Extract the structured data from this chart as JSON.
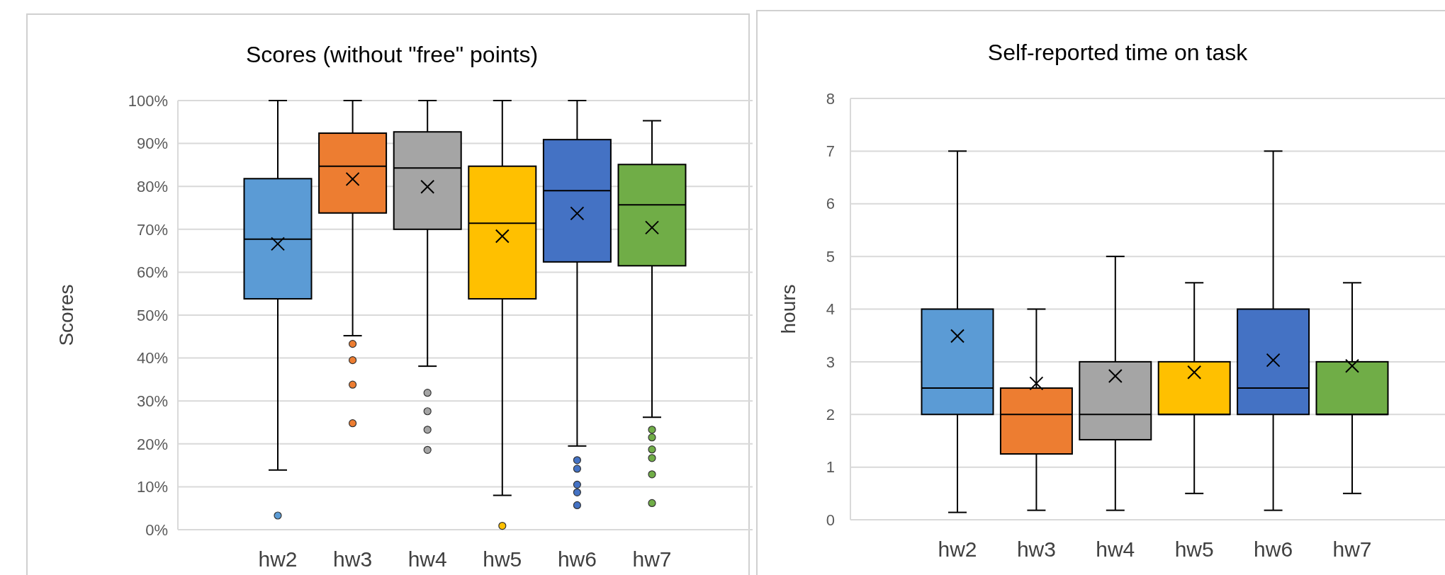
{
  "chart_data": [
    {
      "type": "box",
      "title": "Scores (without \"free\" points)",
      "ylabel": "Scores",
      "categories": [
        "hw2",
        "hw3",
        "hw4",
        "hw5",
        "hw6",
        "hw7"
      ],
      "colors": [
        "#5b9bd5",
        "#ed7d31",
        "#a5a5a5",
        "#ffc000",
        "#4472c4",
        "#70ad47"
      ],
      "boxes": [
        {
          "low": 13.9,
          "q1": 53.8,
          "median": 67.7,
          "q3": 81.8,
          "high": 100,
          "mean": 66.6,
          "outliers": [
            3.3
          ]
        },
        {
          "low": 45.2,
          "q1": 73.8,
          "median": 84.7,
          "q3": 92.4,
          "high": 100,
          "mean": 81.7,
          "outliers": [
            43.3,
            39.5,
            33.8,
            24.8
          ]
        },
        {
          "low": 38.1,
          "q1": 70.0,
          "median": 84.3,
          "q3": 92.7,
          "high": 100,
          "mean": 79.9,
          "outliers": [
            31.9,
            27.6,
            23.3,
            18.6
          ]
        },
        {
          "low": 8.0,
          "q1": 53.8,
          "median": 71.4,
          "q3": 84.7,
          "high": 100,
          "mean": 68.4,
          "outliers": [
            0.9
          ]
        },
        {
          "low": 19.5,
          "q1": 62.4,
          "median": 79.0,
          "q3": 90.9,
          "high": 100,
          "mean": 73.7,
          "outliers": [
            16.2,
            14.2,
            10.5,
            8.7,
            5.7
          ]
        },
        {
          "low": 26.2,
          "q1": 61.5,
          "median": 75.7,
          "q3": 85.1,
          "high": 95.3,
          "mean": 70.4,
          "outliers": [
            23.3,
            21.5,
            18.7,
            16.7,
            12.9,
            6.2
          ]
        }
      ],
      "ylim": [
        0,
        100
      ],
      "yticks": [
        {
          "value": 0,
          "label": "0%"
        },
        {
          "value": 10,
          "label": "10%"
        },
        {
          "value": 20,
          "label": "20%"
        },
        {
          "value": 30,
          "label": "30%"
        },
        {
          "value": 40,
          "label": "40%"
        },
        {
          "value": 50,
          "label": "50%"
        },
        {
          "value": 60,
          "label": "60%"
        },
        {
          "value": 70,
          "label": "70%"
        },
        {
          "value": 80,
          "label": "80%"
        },
        {
          "value": 90,
          "label": "90%"
        },
        {
          "value": 100,
          "label": "100%"
        }
      ],
      "grid": "y"
    },
    {
      "type": "box",
      "title": "Self-reported time on task",
      "ylabel": "hours",
      "categories": [
        "hw2",
        "hw3",
        "hw4",
        "hw5",
        "hw6",
        "hw7"
      ],
      "colors": [
        "#5b9bd5",
        "#ed7d31",
        "#a5a5a5",
        "#ffc000",
        "#4472c4",
        "#70ad47"
      ],
      "boxes": [
        {
          "low": 0.14,
          "q1": 2,
          "median": 2.5,
          "q3": 4,
          "high": 7,
          "mean": 3.49
        },
        {
          "low": 0.18,
          "q1": 1.25,
          "median": 2,
          "q3": 2.5,
          "high": 4,
          "mean": 2.59
        },
        {
          "low": 0.18,
          "q1": 1.52,
          "median": 2,
          "q3": 3,
          "high": 5,
          "mean": 2.73
        },
        {
          "low": 0.5,
          "q1": 2,
          "median": 2,
          "q3": 3,
          "high": 4.5,
          "mean": 2.8
        },
        {
          "low": 0.18,
          "q1": 2,
          "median": 2.5,
          "q3": 4,
          "high": 7,
          "mean": 3.03
        },
        {
          "low": 0.5,
          "q1": 2,
          "median": 2,
          "q3": 3,
          "high": 4.5,
          "mean": 2.92
        }
      ],
      "ylim": [
        0,
        8
      ],
      "yticks": [
        0,
        1,
        2,
        3,
        4,
        5,
        6,
        7,
        8
      ],
      "grid": "y"
    }
  ]
}
